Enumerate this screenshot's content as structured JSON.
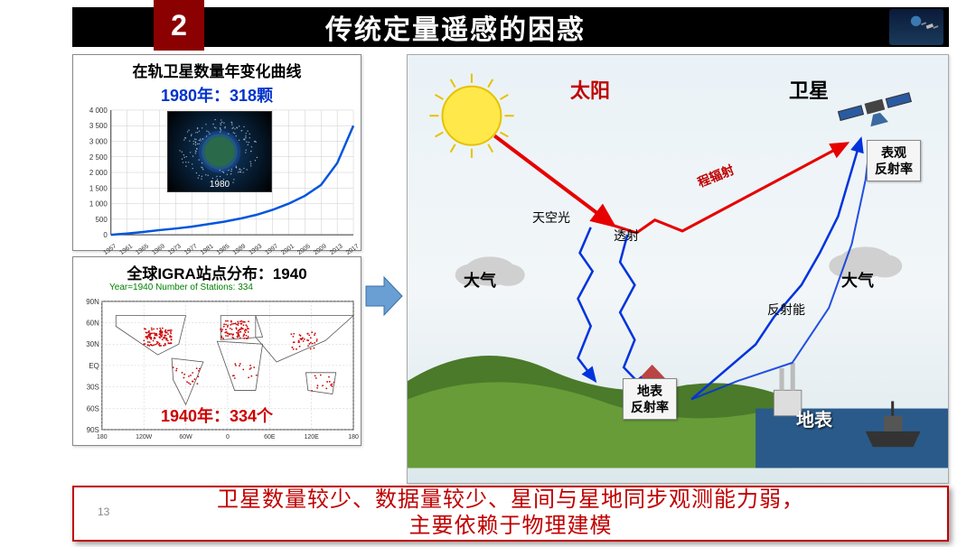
{
  "header": {
    "number": "2",
    "title": "传统定量遥感的困惑"
  },
  "left": {
    "top": {
      "title": "在轨卫星数量年变化曲线",
      "highlight": "1980年：318颗",
      "inset_label": "1980",
      "chart": {
        "type": "line",
        "line_color": "#0055dd",
        "line_width": 2.5,
        "grid_color": "#cccccc",
        "axis_color": "#333333",
        "x_ticks": [
          "1957",
          "1961",
          "1965",
          "1969",
          "1973",
          "1977",
          "1981",
          "1985",
          "1989",
          "1993",
          "1997",
          "2001",
          "2005",
          "2009",
          "2013",
          "2017"
        ],
        "y_ticks": [
          0,
          500,
          1000,
          1500,
          2000,
          2500,
          3000,
          3500,
          4000
        ],
        "ylabel_fmt": "n nnn",
        "data": [
          {
            "x": 1957,
            "y": 0
          },
          {
            "x": 1961,
            "y": 40
          },
          {
            "x": 1965,
            "y": 90
          },
          {
            "x": 1969,
            "y": 150
          },
          {
            "x": 1973,
            "y": 200
          },
          {
            "x": 1977,
            "y": 260
          },
          {
            "x": 1981,
            "y": 340
          },
          {
            "x": 1985,
            "y": 420
          },
          {
            "x": 1989,
            "y": 520
          },
          {
            "x": 1993,
            "y": 640
          },
          {
            "x": 1997,
            "y": 800
          },
          {
            "x": 2001,
            "y": 1000
          },
          {
            "x": 2005,
            "y": 1250
          },
          {
            "x": 2009,
            "y": 1600
          },
          {
            "x": 2013,
            "y": 2300
          },
          {
            "x": 2017,
            "y": 3500
          }
        ]
      }
    },
    "bot": {
      "title": "全球IGRA站点分布：1940",
      "map_meta": "Year=1940    Number of Stations: 334",
      "caption": "1940年：334个",
      "map": {
        "outline_color": "#555555",
        "station_color": "#cc0000",
        "y_ticks": [
          "90N",
          "60N",
          "30N",
          "EQ",
          "30S",
          "60S",
          "90S"
        ],
        "x_ticks": [
          "180",
          "120W",
          "60W",
          "0",
          "60E",
          "120E",
          "180"
        ]
      }
    }
  },
  "scene": {
    "sun_label": "太阳",
    "satellite_label": "卫星",
    "atmosphere_label": "大气",
    "surface_label": "地表",
    "path_labels": {
      "skylight": "天空光",
      "transmit": "透射",
      "path_rad": "程辐射",
      "reflect": "反射能"
    },
    "boxes": {
      "apparent": "表观\n反射率",
      "surface_ref": "地表\n反射率"
    },
    "colors": {
      "sun_ray": "#e60000",
      "blue_ray": "#0033dd",
      "sun_fill": "#ffe84a",
      "sun_edge": "#e6c200",
      "cloud": "#d0d0d0",
      "green1": "#4a7a2a",
      "green2": "#6aa03a",
      "sea": "#2a5a8a",
      "sat_body": "#444"
    }
  },
  "footer": {
    "line1": "卫星数量较少、数据量较少、星间与星地同步观测能力弱，",
    "line2": "主要依赖于物理建模"
  },
  "slide_number": "13"
}
